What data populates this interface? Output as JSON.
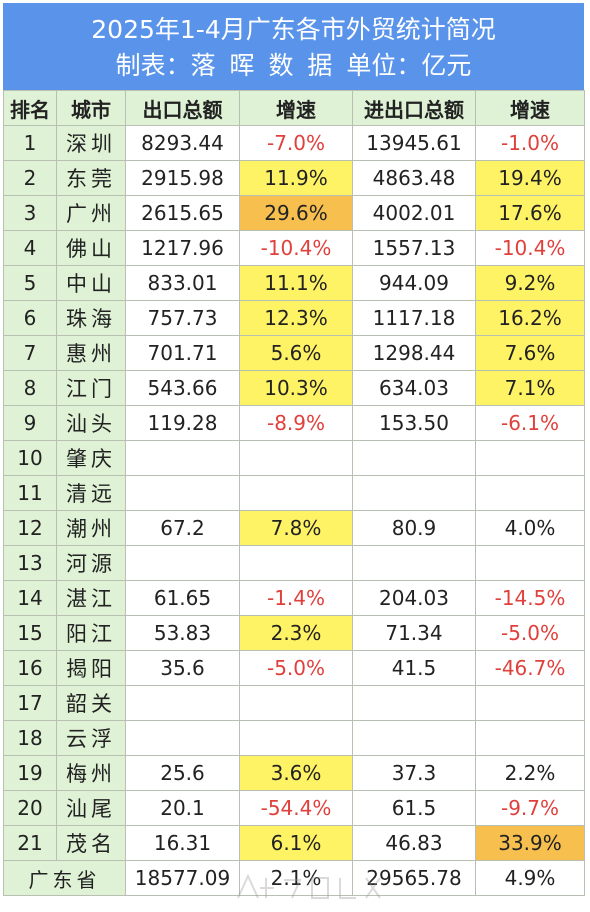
{
  "title": "2025年1-4月广东各市外贸统计简况",
  "subtitle": "制表：落 晖 数 据    单位：亿元",
  "headers": [
    "排名",
    "城市",
    "出口总额",
    "增速",
    "进出口总额",
    "增速"
  ],
  "rows": [
    {
      "rank": "1",
      "city": "深圳",
      "export": "8293.44",
      "export_growth": "-7.0%",
      "total": "13945.61",
      "total_growth": "-1.0%"
    },
    {
      "rank": "2",
      "city": "东莞",
      "export": "2915.98",
      "export_growth": "11.9%",
      "total": "4863.48",
      "total_growth": "19.4%"
    },
    {
      "rank": "3",
      "city": "广州",
      "export": "2615.65",
      "export_growth": "29.6%",
      "total": "4002.01",
      "total_growth": "17.6%"
    },
    {
      "rank": "4",
      "city": "佛山",
      "export": "1217.96",
      "export_growth": "-10.4%",
      "total": "1557.13",
      "total_growth": "-10.4%"
    },
    {
      "rank": "5",
      "city": "中山",
      "export": "833.01",
      "export_growth": "11.1%",
      "total": "944.09",
      "total_growth": "9.2%"
    },
    {
      "rank": "6",
      "city": "珠海",
      "export": "757.73",
      "export_growth": "12.3%",
      "total": "1117.18",
      "total_growth": "16.2%"
    },
    {
      "rank": "7",
      "city": "惠州",
      "export": "701.71",
      "export_growth": "5.6%",
      "total": "1298.44",
      "total_growth": "7.6%"
    },
    {
      "rank": "8",
      "city": "江门",
      "export": "543.66",
      "export_growth": "10.3%",
      "total": "634.03",
      "total_growth": "7.1%"
    },
    {
      "rank": "9",
      "city": "汕头",
      "export": "119.28",
      "export_growth": "-8.9%",
      "total": "153.50",
      "total_growth": "-6.1%"
    },
    {
      "rank": "10",
      "city": "肇庆",
      "export": "",
      "export_growth": "",
      "total": "",
      "total_growth": ""
    },
    {
      "rank": "11",
      "city": "清远",
      "export": "",
      "export_growth": "",
      "total": "",
      "total_growth": ""
    },
    {
      "rank": "12",
      "city": "潮州",
      "export": "67.2",
      "export_growth": "7.8%",
      "total": "80.9",
      "total_growth": "4.0%"
    },
    {
      "rank": "13",
      "city": "河源",
      "export": "",
      "export_growth": "",
      "total": "",
      "total_growth": ""
    },
    {
      "rank": "14",
      "city": "湛江",
      "export": "61.65",
      "export_growth": "-1.4%",
      "total": "204.03",
      "total_growth": "-14.5%"
    },
    {
      "rank": "15",
      "city": "阳江",
      "export": "53.83",
      "export_growth": "2.3%",
      "total": "71.34",
      "total_growth": "-5.0%"
    },
    {
      "rank": "16",
      "city": "揭阳",
      "export": "35.6",
      "export_growth": "-5.0%",
      "total": "41.5",
      "total_growth": "-46.7%"
    },
    {
      "rank": "17",
      "city": "韶关",
      "export": "",
      "export_growth": "",
      "total": "",
      "total_growth": ""
    },
    {
      "rank": "18",
      "city": "云浮",
      "export": "",
      "export_growth": "",
      "total": "",
      "total_growth": ""
    },
    {
      "rank": "19",
      "city": "梅州",
      "export": "25.6",
      "export_growth": "3.6%",
      "total": "37.3",
      "total_growth": "2.2%"
    },
    {
      "rank": "20",
      "city": "汕尾",
      "export": "20.1",
      "export_growth": "-54.4%",
      "total": "61.5",
      "total_growth": "-9.7%"
    },
    {
      "rank": "21",
      "city": "茂名",
      "export": "16.31",
      "export_growth": "6.1%",
      "total": "46.83",
      "total_growth": "33.9%"
    }
  ],
  "province_total": {
    "name": "广东省",
    "export": "18577.09",
    "export_growth": "2.1%",
    "total": "29565.78",
    "total_growth": "4.9%"
  },
  "colors": {
    "header_bg": "#5a94ea",
    "label_bg": "#dff2d6",
    "highlight_yellow": "#fef265",
    "highlight_orange": "#f7bf4e",
    "negative": "#e0403b"
  }
}
